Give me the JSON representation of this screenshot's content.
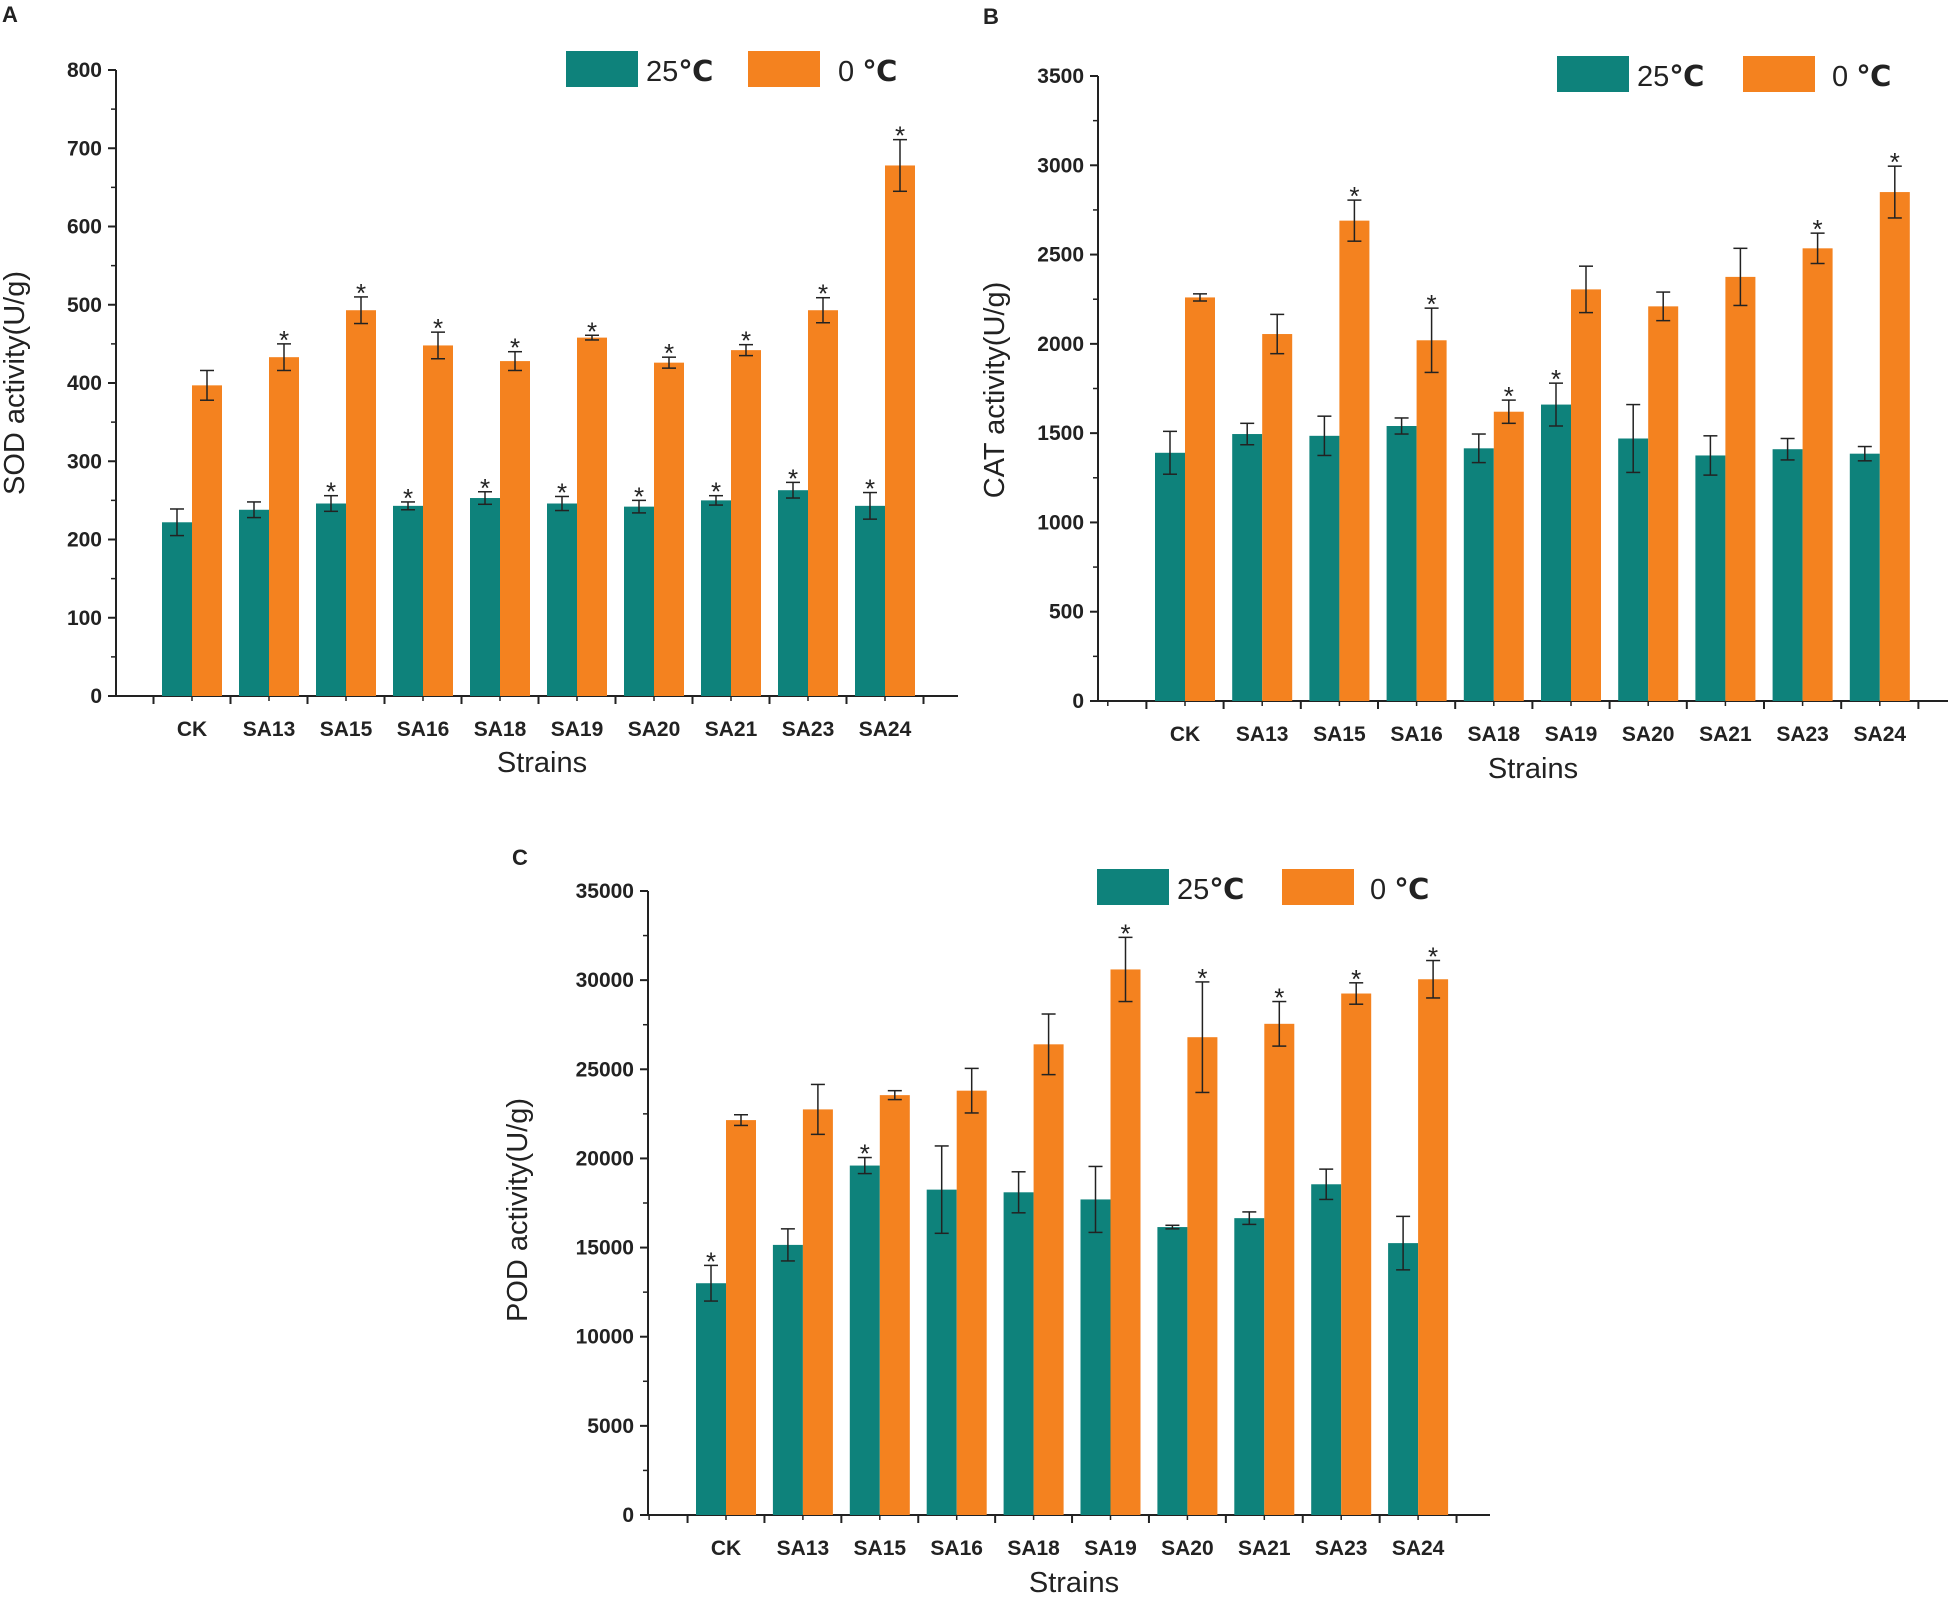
{
  "colors": {
    "warm": "#0e827b",
    "cold": "#f4821f",
    "axis": "#222222"
  },
  "legend": {
    "warm_label": "25",
    "cold_label": "0 ",
    "unit": "℃"
  },
  "chart_data": [
    {
      "panel": "A",
      "type": "bar",
      "title": "",
      "xlabel": "Strains",
      "ylabel": "SOD activity(U/g)",
      "ylim": [
        0,
        800
      ],
      "yticks": [
        0,
        100,
        200,
        300,
        400,
        500,
        600,
        700,
        800
      ],
      "ytick_labels": [
        "0",
        "100",
        "200",
        "300",
        "400",
        "500",
        "600",
        "700",
        "800"
      ],
      "categories": [
        "CK",
        "SA13",
        "SA15",
        "SA16",
        "SA18",
        "SA19",
        "SA20",
        "SA21",
        "SA23",
        "SA24"
      ],
      "series": [
        {
          "name": "25℃",
          "values": [
            222,
            238,
            246,
            243,
            253,
            246,
            242,
            250,
            263,
            243
          ],
          "errors": [
            17,
            10,
            10,
            5,
            8,
            9,
            8,
            6,
            10,
            17
          ],
          "significant": [
            false,
            false,
            true,
            true,
            true,
            true,
            true,
            true,
            true,
            true
          ]
        },
        {
          "name": "0 ℃",
          "values": [
            397,
            433,
            493,
            448,
            428,
            458,
            426,
            442,
            493,
            678
          ],
          "errors": [
            19,
            17,
            17,
            17,
            12,
            3,
            7,
            7,
            16,
            33
          ],
          "significant": [
            false,
            true,
            true,
            true,
            true,
            true,
            true,
            true,
            true,
            true
          ]
        }
      ]
    },
    {
      "panel": "B",
      "type": "bar",
      "title": "",
      "xlabel": "Strains",
      "ylabel": "CAT activity(U/g)",
      "ylim": [
        0,
        3500
      ],
      "yticks": [
        0,
        500,
        1000,
        1500,
        2000,
        2500,
        3000,
        3500
      ],
      "ytick_labels": [
        "0",
        "500",
        "1000",
        "1500",
        "2000",
        "2500",
        "3000",
        "3500"
      ],
      "categories": [
        "CK",
        "SA13",
        "SA15",
        "SA16",
        "SA18",
        "SA19",
        "SA20",
        "SA21",
        "SA23",
        "SA24"
      ],
      "series": [
        {
          "name": "25℃",
          "values": [
            1390,
            1495,
            1485,
            1540,
            1415,
            1660,
            1470,
            1375,
            1410,
            1385
          ],
          "errors": [
            120,
            60,
            110,
            45,
            80,
            120,
            190,
            110,
            60,
            40
          ],
          "significant": [
            false,
            false,
            false,
            false,
            false,
            true,
            false,
            false,
            false,
            false
          ]
        },
        {
          "name": "0 ℃",
          "values": [
            2260,
            2055,
            2690,
            2020,
            1620,
            2305,
            2210,
            2375,
            2535,
            2850
          ],
          "errors": [
            20,
            110,
            115,
            180,
            65,
            130,
            80,
            160,
            85,
            145
          ],
          "significant": [
            false,
            false,
            true,
            true,
            true,
            false,
            false,
            false,
            true,
            true
          ]
        }
      ]
    },
    {
      "panel": "C",
      "type": "bar",
      "title": "",
      "xlabel": "Strains",
      "ylabel": "POD activity(U/g)",
      "ylim": [
        0,
        35000
      ],
      "yticks": [
        0,
        5000,
        10000,
        15000,
        20000,
        25000,
        30000,
        35000
      ],
      "ytick_labels": [
        "0",
        "5000",
        "10000",
        "15000",
        "20000",
        "25000",
        "30000",
        "35000"
      ],
      "categories": [
        "CK",
        "SA13",
        "SA15",
        "SA16",
        "SA18",
        "SA19",
        "SA20",
        "SA21",
        "SA23",
        "SA24"
      ],
      "series": [
        {
          "name": "25℃",
          "values": [
            13000,
            15150,
            19600,
            18250,
            18100,
            17700,
            16150,
            16650,
            18550,
            15250
          ],
          "errors": [
            1000,
            900,
            450,
            2450,
            1150,
            1850,
            100,
            350,
            850,
            1500
          ],
          "significant": [
            true,
            false,
            true,
            false,
            false,
            false,
            false,
            false,
            false,
            false
          ]
        },
        {
          "name": "0 ℃",
          "values": [
            22150,
            22750,
            23550,
            23800,
            26400,
            30600,
            26800,
            27550,
            29250,
            30050
          ],
          "errors": [
            300,
            1400,
            250,
            1250,
            1700,
            1800,
            3100,
            1250,
            600,
            1050
          ],
          "significant": [
            false,
            false,
            false,
            false,
            false,
            true,
            true,
            true,
            true,
            true
          ]
        }
      ]
    }
  ]
}
